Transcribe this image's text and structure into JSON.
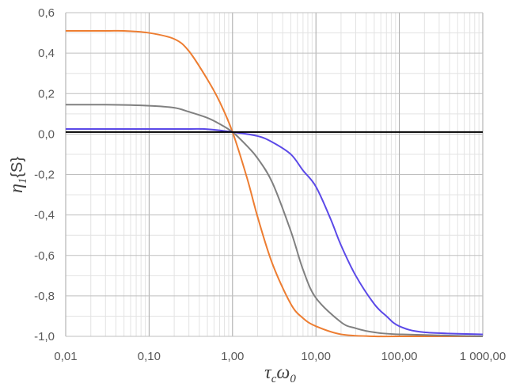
{
  "chart_data": {
    "type": "line",
    "x_scale": "log",
    "xlim": [
      0.01,
      1000
    ],
    "ylim": [
      -1.0,
      0.6
    ],
    "grid": true,
    "x_tick_labels": [
      "0,01",
      "0,10",
      "1,00",
      "10,00",
      "100,00",
      "1 000,00"
    ],
    "y_tick_labels": [
      "0,6",
      "0,4",
      "0,2",
      "0,0",
      "-0,2",
      "-0,4",
      "-0,6",
      "-0,8",
      "-1,0"
    ],
    "x_ticks": [
      0.01,
      0.1,
      1,
      10,
      100,
      1000
    ],
    "y_ticks": [
      0.6,
      0.4,
      0.2,
      0.0,
      -0.2,
      -0.4,
      -0.6,
      -0.8,
      -1.0
    ],
    "xlabel": {
      "main": "τ",
      "sub1": "c",
      "mid": "ω",
      "sub2": "0"
    },
    "ylabel": {
      "main": "η",
      "sub": "1",
      "tail": "{S}"
    },
    "reference_line": {
      "y": 0.01,
      "color": "#000000"
    },
    "series": [
      {
        "color": "#ED7D31",
        "x": [
          0.01,
          0.03,
          0.05,
          0.1,
          0.2,
          0.3,
          0.5,
          0.7,
          1,
          1.5,
          2,
          3,
          5,
          7,
          10,
          20,
          50,
          100,
          1000
        ],
        "y": [
          0.51,
          0.51,
          0.51,
          0.5,
          0.47,
          0.41,
          0.27,
          0.16,
          0.01,
          -0.22,
          -0.41,
          -0.64,
          -0.84,
          -0.91,
          -0.95,
          -0.99,
          -1.0,
          -1.0,
          -1.0
        ]
      },
      {
        "color": "#808080",
        "x": [
          0.01,
          0.03,
          0.1,
          0.2,
          0.3,
          0.5,
          0.7,
          1,
          1.5,
          2,
          3,
          5,
          7,
          10,
          20,
          30,
          50,
          100,
          1000
        ],
        "y": [
          0.145,
          0.145,
          0.14,
          0.13,
          0.11,
          0.08,
          0.05,
          0.01,
          -0.06,
          -0.12,
          -0.24,
          -0.48,
          -0.67,
          -0.81,
          -0.93,
          -0.96,
          -0.98,
          -0.99,
          -1.0
        ]
      },
      {
        "color": "#5B49E8",
        "x": [
          0.01,
          0.03,
          0.1,
          0.3,
          0.5,
          1,
          2,
          3,
          5,
          7,
          10,
          15,
          20,
          30,
          50,
          70,
          100,
          200,
          1000
        ],
        "y": [
          0.025,
          0.025,
          0.025,
          0.025,
          0.024,
          0.01,
          -0.01,
          -0.04,
          -0.1,
          -0.18,
          -0.26,
          -0.42,
          -0.55,
          -0.7,
          -0.84,
          -0.9,
          -0.95,
          -0.98,
          -0.99
        ]
      }
    ]
  }
}
